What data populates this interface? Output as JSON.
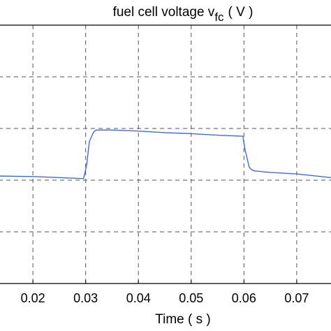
{
  "chart_data": {
    "type": "line",
    "title": "fuel cell voltage  v",
    "title_subscript": "fc",
    "title_unit": "( V )",
    "xlabel": "Time ( s )",
    "ylabel": "",
    "x_ticks": [
      "0.02",
      "0.03",
      "0.04",
      "0.05",
      "0.06",
      "0.07"
    ],
    "xlim": [
      0.0135,
      0.0765
    ],
    "ylim": [
      0,
      5
    ],
    "grid": true,
    "grid_style": "dashed",
    "series": [
      {
        "color": "#4169e1",
        "x": [
          0.0135,
          0.02,
          0.025,
          0.0296,
          0.0302,
          0.0307,
          0.0315,
          0.032,
          0.035,
          0.04,
          0.045,
          0.05,
          0.055,
          0.0598,
          0.0602,
          0.061,
          0.0615,
          0.062,
          0.065,
          0.07,
          0.0765
        ],
        "y": [
          2.08,
          2.07,
          2.05,
          2.03,
          2.3,
          2.75,
          2.93,
          2.97,
          2.97,
          2.95,
          2.92,
          2.9,
          2.87,
          2.85,
          2.6,
          2.25,
          2.2,
          2.18,
          2.15,
          2.12,
          2.05
        ]
      }
    ]
  }
}
